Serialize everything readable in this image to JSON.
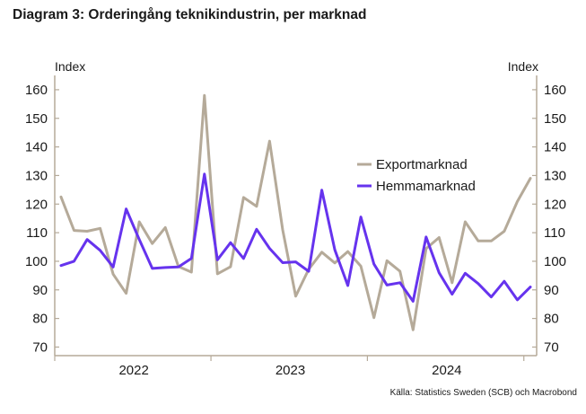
{
  "title": "Diagram 3: Orderingång teknikindustrin, per marknad",
  "source": "Källa: Statistics Sweden (SCB) och Macrobond",
  "chart_data": {
    "type": "line",
    "y_label_left": "Index",
    "y_label_right": "Index",
    "ylim": [
      67,
      165
    ],
    "yticks": [
      70,
      80,
      90,
      100,
      110,
      120,
      130,
      140,
      150,
      160
    ],
    "x_tick_labels": [
      "2022",
      "2023",
      "2024"
    ],
    "x_start": "2021-09",
    "x_end": "2024-09",
    "grid": false,
    "legend_position": "center-right",
    "series": [
      {
        "name": "Exportmarknad",
        "color": "#b5aa99",
        "values": [
          122.5,
          110.8,
          110.5,
          111.5,
          95.5,
          88.8,
          113.8,
          106.2,
          111.8,
          98.2,
          96.2,
          158.0,
          95.6,
          98.1,
          122.3,
          119.2,
          142.0,
          111.0,
          87.8,
          97.2,
          103.2,
          99.4,
          103.4,
          98.3,
          80.3,
          100.2,
          96.5,
          76.0,
          104.4,
          108.3,
          92.5,
          113.8,
          107.1,
          107.1,
          110.5,
          120.9,
          129.0
        ]
      },
      {
        "name": "Hemmamarknad",
        "color": "#6633ee",
        "values": [
          98.5,
          100.0,
          107.6,
          103.8,
          98.0,
          118.3,
          107.6,
          97.5,
          97.8,
          98.0,
          101.0,
          130.5,
          100.5,
          106.5,
          101.0,
          111.2,
          104.5,
          99.5,
          99.8,
          96.5,
          124.9,
          104.0,
          91.5,
          115.5,
          99.0,
          91.7,
          92.5,
          86.0,
          108.5,
          96.0,
          88.5,
          95.8,
          92.2,
          87.5,
          93.0,
          86.5,
          91.0
        ]
      }
    ]
  }
}
